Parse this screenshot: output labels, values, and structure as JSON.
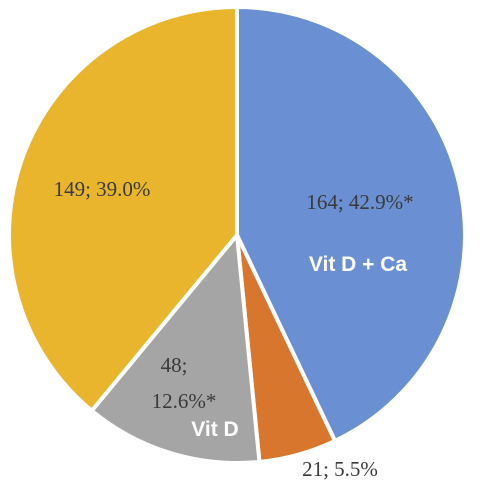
{
  "chart_data": {
    "type": "pie",
    "title": "",
    "slices": [
      {
        "value": 164,
        "percent": "42.9%*",
        "label_text": "164; 42.9%*",
        "group": "Vit D + Ca",
        "color": "#6a8fd2"
      },
      {
        "value": 21,
        "percent": "5.5%",
        "label_text": "21; 5.5%",
        "group": "",
        "color": "#d9762e"
      },
      {
        "value": 48,
        "percent": "12.6%*",
        "label_lines": [
          "48;",
          "12.6%*"
        ],
        "group": "Vit D",
        "color": "#a5a5a5"
      },
      {
        "value": 149,
        "percent": "39.0%",
        "label_text": "149; 39.0%",
        "group": "",
        "color": "#e8b52c"
      }
    ],
    "start_angle_deg": 0,
    "direction": "clockwise",
    "slice_border_color": "#ffffff"
  }
}
